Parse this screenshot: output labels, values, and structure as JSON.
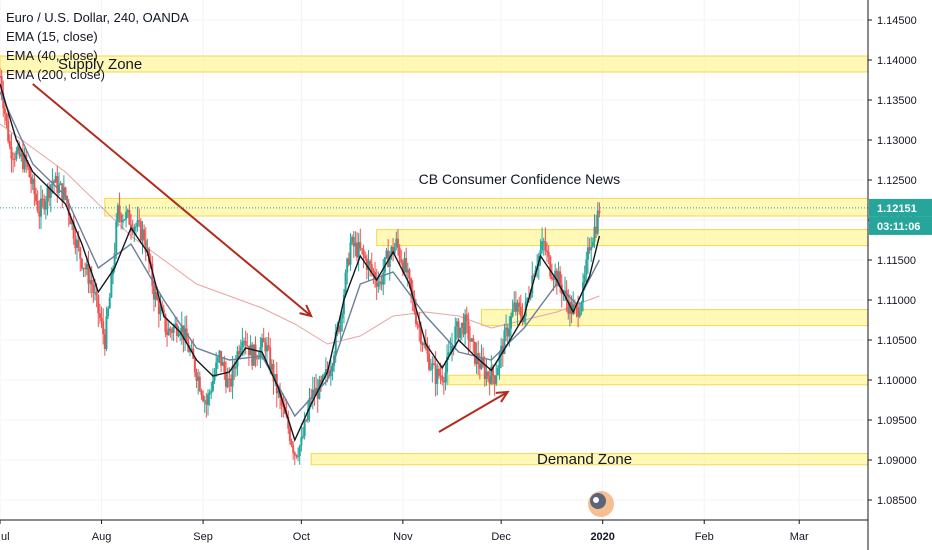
{
  "chart_data": {
    "type": "candlestick",
    "instrument": "Euro / U.S. Dollar, 240, OANDA",
    "indicators": [
      {
        "name": "EMA (15, close)",
        "color": "#131722"
      },
      {
        "name": "EMA (40, close)",
        "color": "#6a7f9a"
      },
      {
        "name": "EMA (200, close)",
        "color": "#e8a4a4"
      }
    ],
    "yaxis": {
      "range": [
        1.0825,
        1.1475
      ],
      "ticks": [
        "1.14500",
        "1.14000",
        "1.13500",
        "1.13000",
        "1.12500",
        "1.12000",
        "1.11500",
        "1.11000",
        "1.10500",
        "1.10000",
        "1.09500",
        "1.09000",
        "1.08500"
      ],
      "tick_values": [
        1.145,
        1.14,
        1.135,
        1.13,
        1.125,
        1.12,
        1.115,
        1.11,
        1.105,
        1.1,
        1.095,
        1.09,
        1.085
      ]
    },
    "xaxis": {
      "labels": [
        "ul",
        "Aug",
        "Sep",
        "Oct",
        "Nov",
        "Dec",
        "2020",
        "Feb",
        "Mar"
      ],
      "label_days": [
        0,
        31,
        62,
        92,
        123,
        153,
        184,
        215,
        244
      ],
      "bold_label": "2020",
      "range_days": [
        0,
        265
      ]
    },
    "price_path": [
      [
        0,
        1.138
      ],
      [
        3,
        1.129
      ],
      [
        8,
        1.127
      ],
      [
        12,
        1.121
      ],
      [
        16,
        1.125
      ],
      [
        20,
        1.123
      ],
      [
        24,
        1.116
      ],
      [
        28,
        1.112
      ],
      [
        32,
        1.105
      ],
      [
        34,
        1.112
      ],
      [
        36,
        1.121
      ],
      [
        40,
        1.12
      ],
      [
        44,
        1.118
      ],
      [
        47,
        1.111
      ],
      [
        51,
        1.106
      ],
      [
        55,
        1.107
      ],
      [
        60,
        1.101
      ],
      [
        63,
        1.097
      ],
      [
        67,
        1.103
      ],
      [
        70,
        1.099
      ],
      [
        74,
        1.106
      ],
      [
        77,
        1.103
      ],
      [
        81,
        1.1045
      ],
      [
        85,
        1.098
      ],
      [
        88,
        1.094
      ],
      [
        90,
        1.091
      ],
      [
        92,
        1.092
      ],
      [
        95,
        1.098
      ],
      [
        98,
        1.099
      ],
      [
        101,
        1.102
      ],
      [
        104,
        1.108
      ],
      [
        107,
        1.117
      ],
      [
        110,
        1.116
      ],
      [
        113,
        1.114
      ],
      [
        116,
        1.112
      ],
      [
        118,
        1.115
      ],
      [
        121,
        1.117
      ],
      [
        124,
        1.1135
      ],
      [
        127,
        1.108
      ],
      [
        130,
        1.1035
      ],
      [
        133,
        1.1005
      ],
      [
        136,
        1.101
      ],
      [
        139,
        1.106
      ],
      [
        142,
        1.107
      ],
      [
        145,
        1.103
      ],
      [
        148,
        1.101
      ],
      [
        151,
        1.1005
      ],
      [
        154,
        1.105
      ],
      [
        157,
        1.109
      ],
      [
        160,
        1.108
      ],
      [
        163,
        1.114
      ],
      [
        166,
        1.117
      ],
      [
        168,
        1.114
      ],
      [
        170,
        1.113
      ],
      [
        172,
        1.111
      ],
      [
        174,
        1.109
      ],
      [
        176,
        1.1085
      ],
      [
        178,
        1.111
      ],
      [
        180,
        1.117
      ],
      [
        182,
        1.1195
      ],
      [
        183,
        1.1215
      ]
    ],
    "ema_series": [
      {
        "name": "EMA (15, close)",
        "points": [
          [
            0,
            1.137
          ],
          [
            5,
            1.13
          ],
          [
            10,
            1.126
          ],
          [
            15,
            1.124
          ],
          [
            20,
            1.122
          ],
          [
            25,
            1.117
          ],
          [
            30,
            1.111
          ],
          [
            35,
            1.114
          ],
          [
            40,
            1.119
          ],
          [
            45,
            1.116
          ],
          [
            50,
            1.108
          ],
          [
            55,
            1.106
          ],
          [
            60,
            1.1025
          ],
          [
            65,
            1.1005
          ],
          [
            70,
            1.101
          ],
          [
            75,
            1.104
          ],
          [
            80,
            1.1035
          ],
          [
            85,
            1.099
          ],
          [
            90,
            1.0925
          ],
          [
            95,
            1.097
          ],
          [
            100,
            1.101
          ],
          [
            105,
            1.11
          ],
          [
            110,
            1.1155
          ],
          [
            115,
            1.1125
          ],
          [
            120,
            1.116
          ],
          [
            125,
            1.112
          ],
          [
            130,
            1.1045
          ],
          [
            135,
            1.1015
          ],
          [
            140,
            1.105
          ],
          [
            145,
            1.103
          ],
          [
            150,
            1.1012
          ],
          [
            155,
            1.1045
          ],
          [
            160,
            1.108
          ],
          [
            165,
            1.1155
          ],
          [
            170,
            1.1125
          ],
          [
            175,
            1.1085
          ],
          [
            180,
            1.113
          ],
          [
            183,
            1.118
          ]
        ]
      },
      {
        "name": "EMA (40, close)",
        "points": [
          [
            0,
            1.136
          ],
          [
            10,
            1.127
          ],
          [
            20,
            1.123
          ],
          [
            30,
            1.114
          ],
          [
            40,
            1.117
          ],
          [
            50,
            1.11
          ],
          [
            60,
            1.104
          ],
          [
            70,
            1.1025
          ],
          [
            80,
            1.103
          ],
          [
            90,
            1.0955
          ],
          [
            100,
            1.1
          ],
          [
            110,
            1.112
          ],
          [
            120,
            1.1135
          ],
          [
            130,
            1.108
          ],
          [
            140,
            1.1035
          ],
          [
            150,
            1.1025
          ],
          [
            160,
            1.1065
          ],
          [
            170,
            1.112
          ],
          [
            176,
            1.1095
          ],
          [
            183,
            1.115
          ]
        ]
      },
      {
        "name": "EMA (200, close)",
        "points": [
          [
            0,
            1.132
          ],
          [
            20,
            1.126
          ],
          [
            40,
            1.118
          ],
          [
            60,
            1.112
          ],
          [
            80,
            1.109
          ],
          [
            90,
            1.107
          ],
          [
            100,
            1.1045
          ],
          [
            110,
            1.1055
          ],
          [
            120,
            1.108
          ],
          [
            130,
            1.1085
          ],
          [
            140,
            1.108
          ],
          [
            150,
            1.1065
          ],
          [
            160,
            1.1075
          ],
          [
            170,
            1.1085
          ],
          [
            183,
            1.1105
          ]
        ]
      }
    ],
    "zones": [
      {
        "name": "supply",
        "label": "Supply Zone",
        "from": 1.1385,
        "to": 1.1405,
        "start_day": 0
      },
      {
        "name": "zone-1121",
        "label": "",
        "from": 1.1205,
        "to": 1.1227,
        "start_day": 32
      },
      {
        "name": "zone-1117",
        "label": "",
        "from": 1.1168,
        "to": 1.1188,
        "start_day": 115
      },
      {
        "name": "zone-1108",
        "label": "",
        "from": 1.1068,
        "to": 1.1088,
        "start_day": 147
      },
      {
        "name": "zone-1100",
        "label": "",
        "from": 1.0994,
        "to": 1.1006,
        "start_day": 137
      },
      {
        "name": "demand",
        "label": "Demand Zone",
        "from": 1.0894,
        "to": 1.0908,
        "start_day": 95
      }
    ],
    "arrows": [
      {
        "name": "downtrend-arrow",
        "from": [
          10,
          1.137
        ],
        "to": [
          95,
          1.108
        ],
        "color": "#b22c1d"
      },
      {
        "name": "uptrend-arrow",
        "from": [
          134,
          1.0935
        ],
        "to": [
          155,
          1.0985
        ],
        "color": "#b22c1d"
      }
    ],
    "annotation": {
      "text": "CB Consumer Confidence News",
      "day": 162,
      "price": 1.1251
    },
    "current_price": {
      "value": "1.12151",
      "price": 1.12151,
      "color": "#26a69a"
    },
    "countdown": {
      "value": "03:11:06",
      "color": "#26a69a"
    },
    "grid": true
  }
}
